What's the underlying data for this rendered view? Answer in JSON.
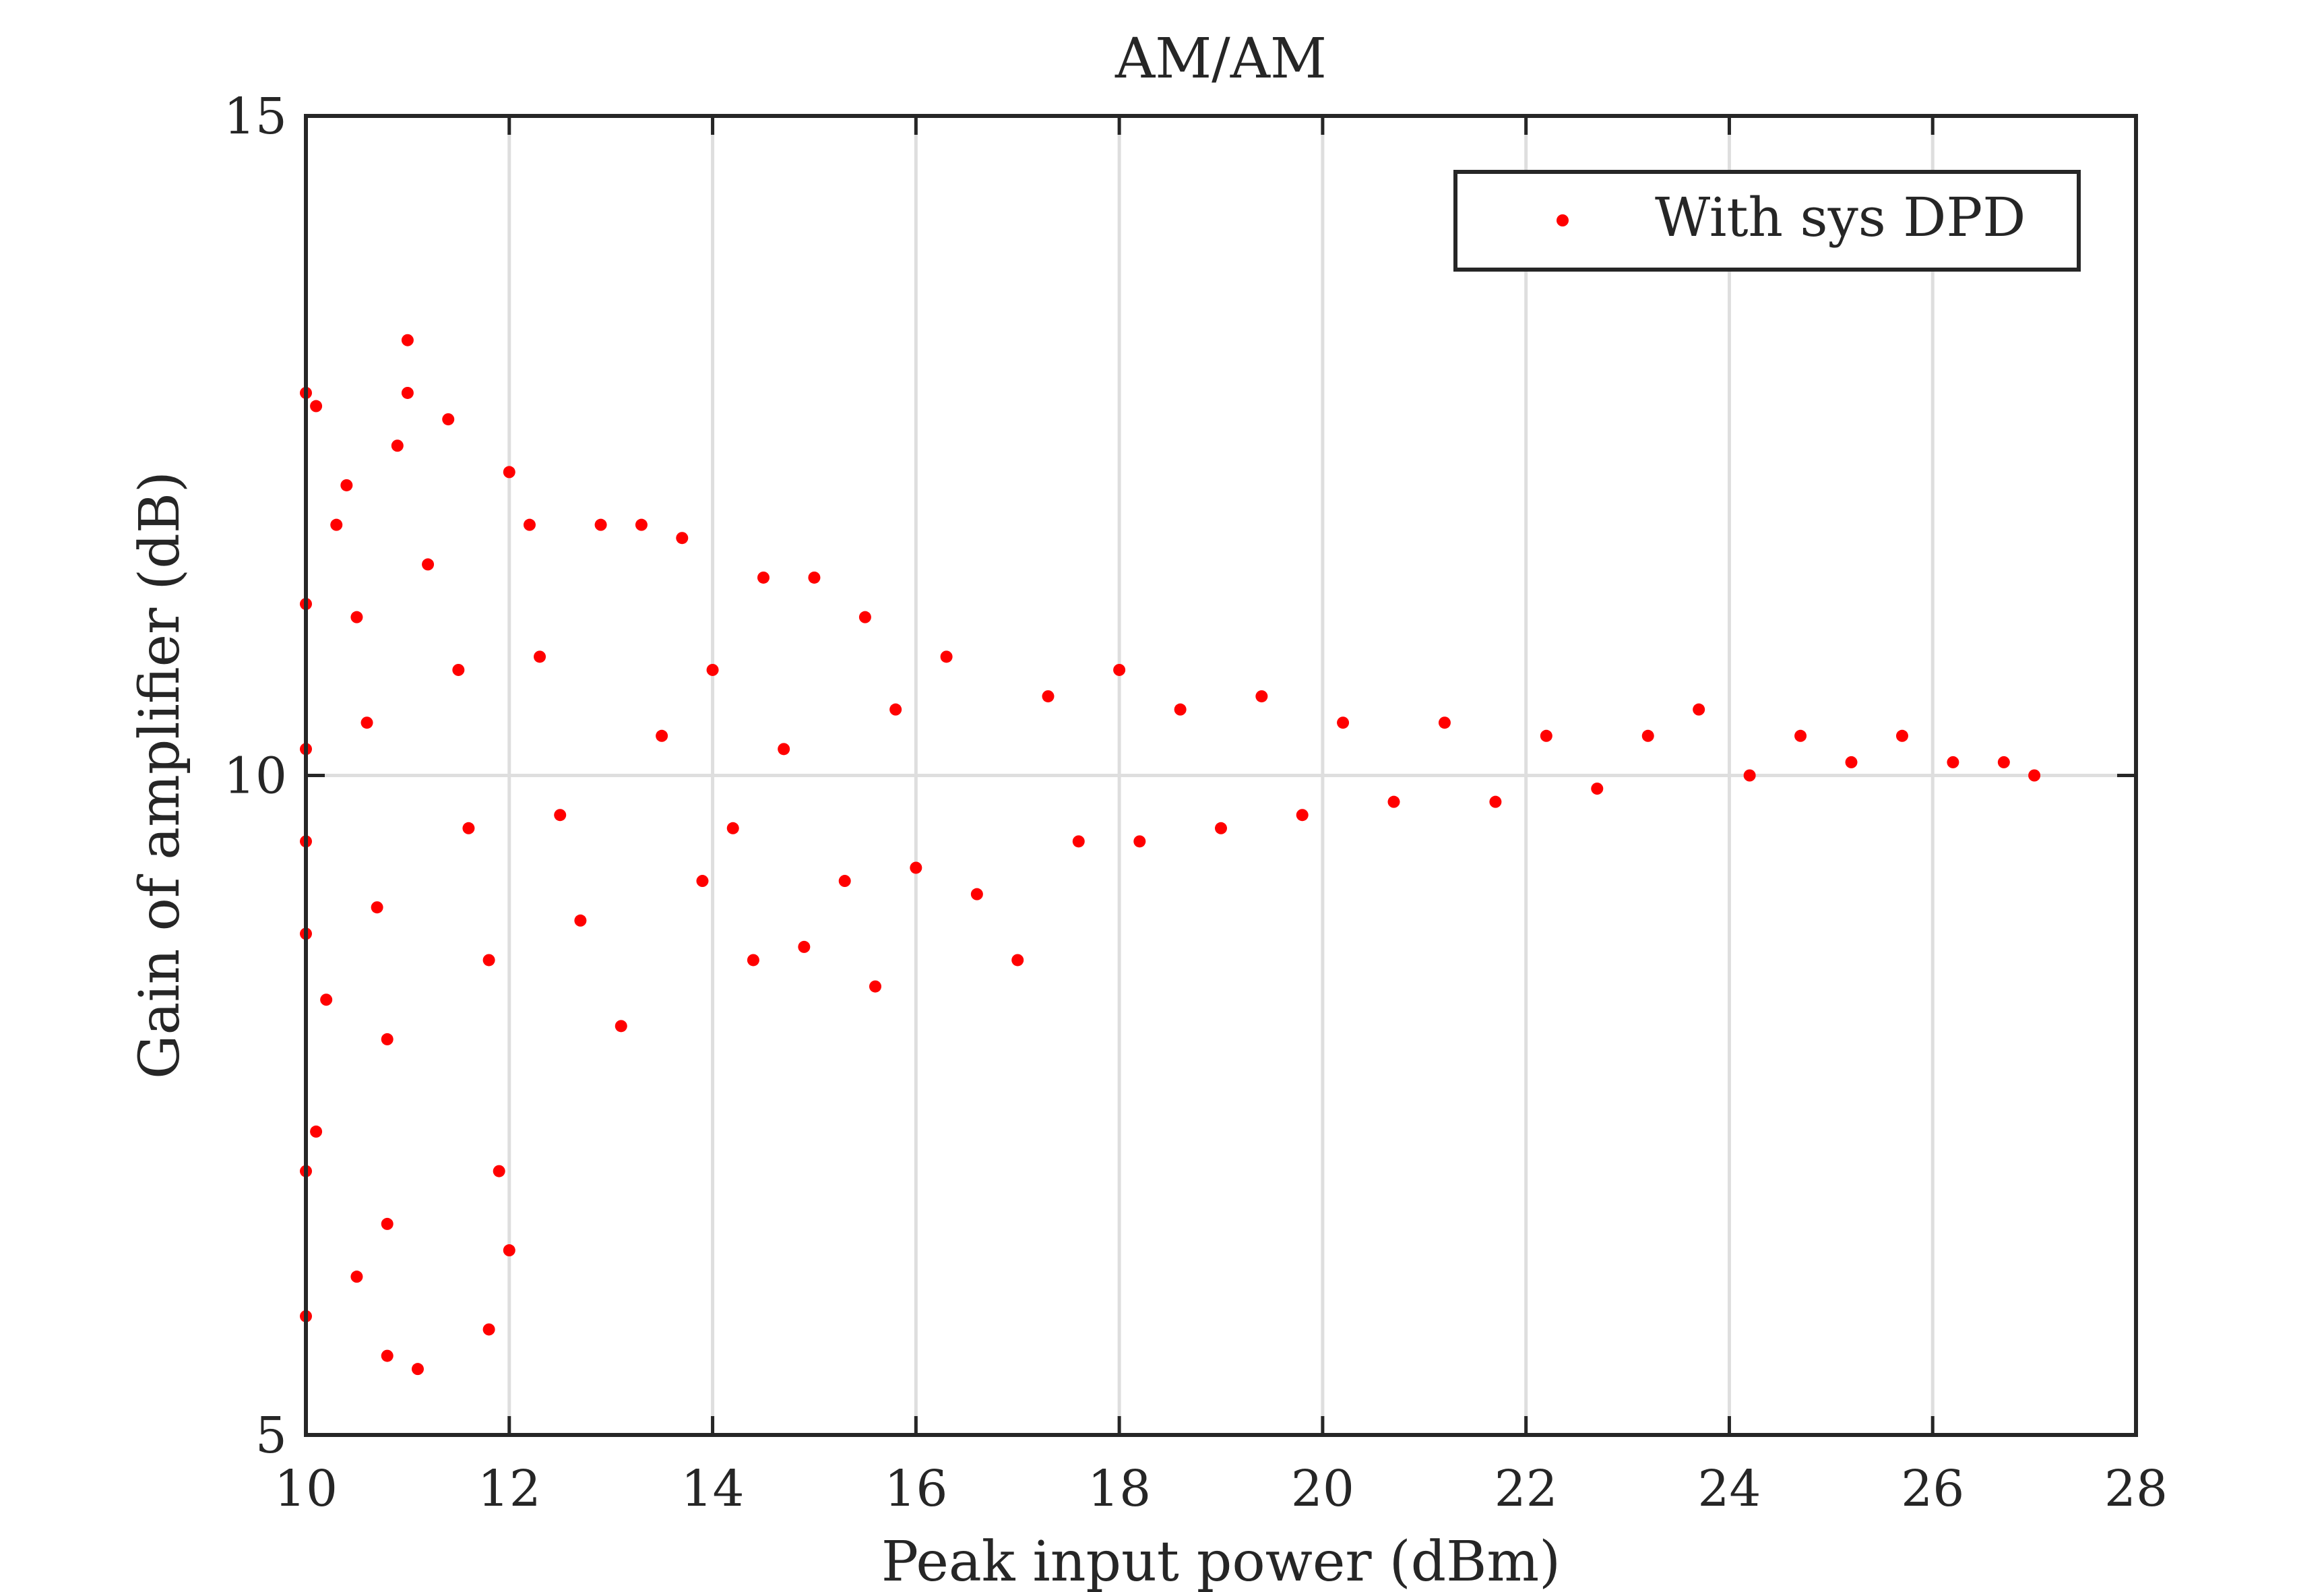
{
  "chart_data": {
    "type": "scatter",
    "title": "AM/AM",
    "xlabel": "Peak input power (dBm)",
    "ylabel": "Gain of amplifier (dB)",
    "xlim": [
      10,
      28
    ],
    "ylim": [
      5,
      15
    ],
    "xticks": [
      "10",
      "12",
      "14",
      "16",
      "18",
      "20",
      "22",
      "24",
      "26",
      "28"
    ],
    "yticks": [
      "5",
      "10",
      "15"
    ],
    "grid": "vertical and horizontal major lines",
    "legend_position": "top-right",
    "series": [
      {
        "name": "With sys DPD",
        "color": "#ff0000",
        "marker": "dot",
        "points": [
          [
            10.0,
            12.9
          ],
          [
            10.1,
            12.8
          ],
          [
            10.0,
            11.3
          ],
          [
            10.0,
            10.2
          ],
          [
            10.0,
            9.5
          ],
          [
            10.0,
            8.8
          ],
          [
            10.0,
            7.0
          ],
          [
            10.0,
            5.9
          ],
          [
            10.1,
            7.3
          ],
          [
            10.2,
            8.3
          ],
          [
            10.3,
            11.9
          ],
          [
            10.4,
            12.2
          ],
          [
            10.5,
            11.2
          ],
          [
            10.6,
            10.4
          ],
          [
            10.7,
            9.0
          ],
          [
            10.8,
            8.0
          ],
          [
            10.8,
            6.6
          ],
          [
            10.5,
            6.2
          ],
          [
            10.8,
            5.6
          ],
          [
            11.1,
            5.5
          ],
          [
            11.0,
            13.3
          ],
          [
            11.0,
            12.9
          ],
          [
            10.9,
            12.5
          ],
          [
            11.2,
            11.6
          ],
          [
            11.4,
            12.7
          ],
          [
            11.5,
            10.8
          ],
          [
            11.6,
            9.6
          ],
          [
            11.8,
            8.6
          ],
          [
            11.8,
            5.8
          ],
          [
            11.9,
            7.0
          ],
          [
            12.0,
            6.4
          ],
          [
            12.0,
            12.3
          ],
          [
            12.2,
            11.9
          ],
          [
            12.3,
            10.9
          ],
          [
            12.5,
            9.7
          ],
          [
            12.7,
            8.9
          ],
          [
            12.9,
            11.9
          ],
          [
            13.1,
            8.1
          ],
          [
            13.3,
            11.9
          ],
          [
            13.5,
            10.3
          ],
          [
            13.7,
            11.8
          ],
          [
            13.9,
            9.2
          ],
          [
            14.0,
            10.8
          ],
          [
            14.2,
            9.6
          ],
          [
            14.4,
            8.6
          ],
          [
            14.5,
            11.5
          ],
          [
            14.7,
            10.2
          ],
          [
            14.9,
            8.7
          ],
          [
            15.0,
            11.5
          ],
          [
            15.3,
            9.2
          ],
          [
            15.5,
            11.2
          ],
          [
            15.6,
            8.4
          ],
          [
            15.8,
            10.5
          ],
          [
            16.0,
            9.3
          ],
          [
            16.3,
            10.9
          ],
          [
            16.6,
            9.1
          ],
          [
            17.0,
            8.6
          ],
          [
            17.3,
            10.6
          ],
          [
            17.6,
            9.5
          ],
          [
            18.0,
            10.8
          ],
          [
            18.2,
            9.5
          ],
          [
            18.6,
            10.5
          ],
          [
            19.0,
            9.6
          ],
          [
            19.4,
            10.6
          ],
          [
            19.8,
            9.7
          ],
          [
            20.2,
            10.4
          ],
          [
            20.7,
            9.8
          ],
          [
            21.2,
            10.4
          ],
          [
            21.7,
            9.8
          ],
          [
            22.2,
            10.3
          ],
          [
            22.7,
            9.9
          ],
          [
            23.2,
            10.3
          ],
          [
            23.7,
            10.5
          ],
          [
            24.2,
            10.0
          ],
          [
            24.7,
            10.3
          ],
          [
            25.2,
            10.1
          ],
          [
            25.7,
            10.3
          ],
          [
            26.2,
            10.1
          ],
          [
            26.7,
            10.1
          ],
          [
            27.0,
            10.0
          ]
        ]
      }
    ]
  }
}
